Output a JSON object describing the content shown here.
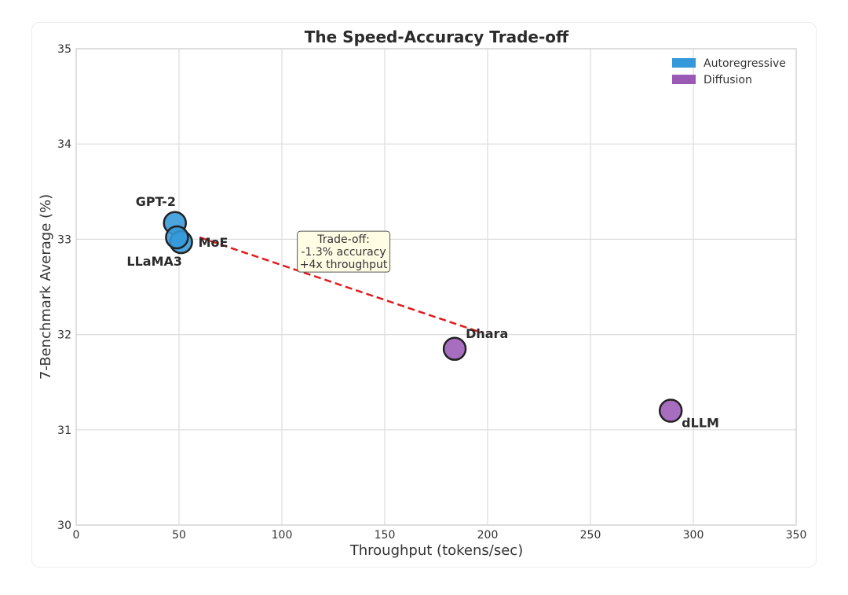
{
  "chart_data": {
    "type": "scatter",
    "title": "The Speed-Accuracy Trade-off",
    "xlabel": "Throughput (tokens/sec)",
    "ylabel": "7-Benchmark Average (%)",
    "xlim": [
      0,
      350
    ],
    "ylim": [
      30,
      35
    ],
    "xticks": [
      "0",
      "50",
      "100",
      "150",
      "200",
      "250",
      "300",
      "350"
    ],
    "yticks": [
      "30",
      "31",
      "32",
      "33",
      "34",
      "35"
    ],
    "grid": true,
    "legend_position": "top-right",
    "legend": [
      {
        "name": "Autoregressive",
        "color": "#3498db"
      },
      {
        "name": "Diffusion",
        "color": "#9b59b6"
      }
    ],
    "points": [
      {
        "label": "GPT-2",
        "x": 48,
        "y": 33.17,
        "group": "Autoregressive",
        "label_pos": "upper-left"
      },
      {
        "label": "MoE",
        "x": 51,
        "y": 32.97,
        "group": "Autoregressive",
        "label_pos": "right"
      },
      {
        "label": "LLaMA3",
        "x": 49,
        "y": 33.02,
        "group": "Autoregressive",
        "label_pos": "lower-left"
      },
      {
        "label": "Dhara",
        "x": 184,
        "y": 31.85,
        "group": "Diffusion",
        "label_pos": "upper-right"
      },
      {
        "label": "dLLM",
        "x": 289,
        "y": 31.2,
        "group": "Diffusion",
        "label_pos": "lower-right"
      }
    ],
    "trend_line": {
      "from": [
        60,
        33.02
      ],
      "to": [
        197,
        32.02
      ],
      "color": "#e31a1c",
      "style": "dashed"
    },
    "annotation": {
      "lines": [
        "Trade-off:",
        "-1.3% accuracy",
        "+4x throughput"
      ],
      "x": 130,
      "y": 32.87,
      "background": "#fffde4"
    }
  }
}
